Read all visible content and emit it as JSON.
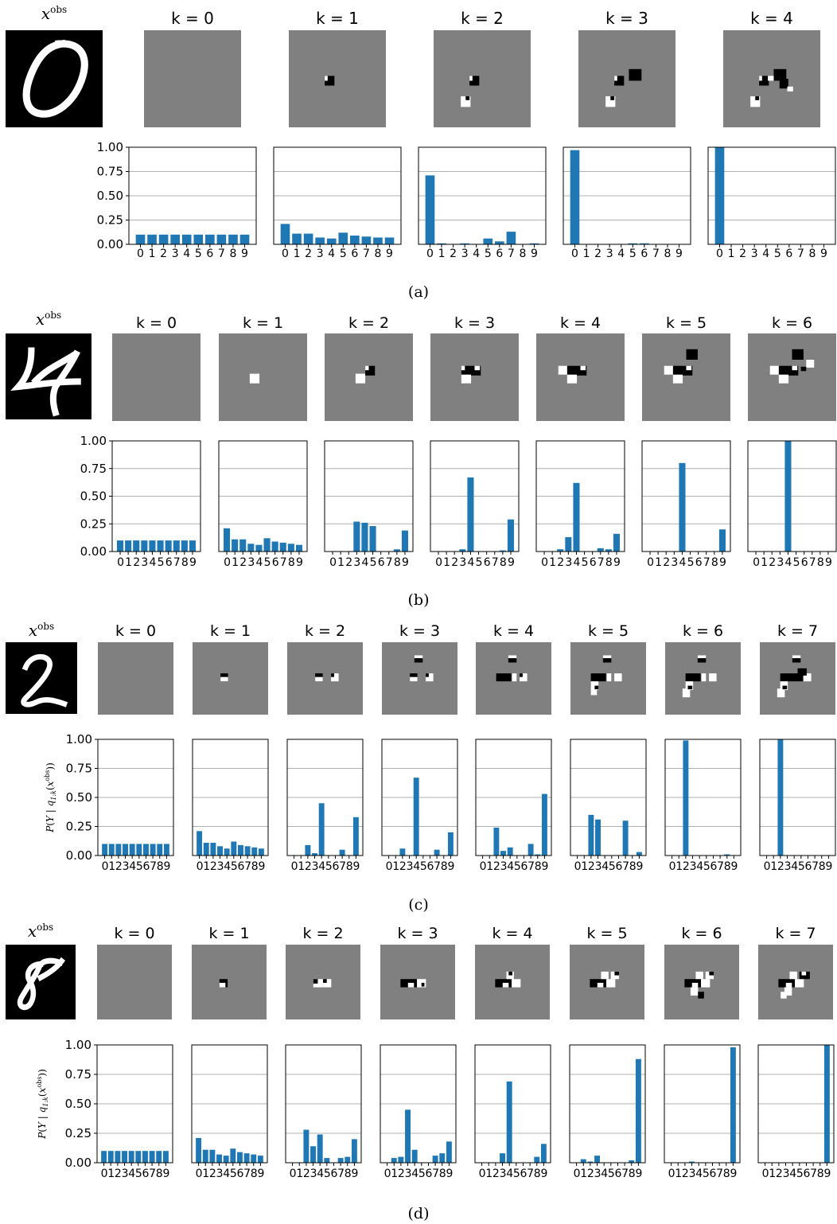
{
  "figure": {
    "obs_label_base": "x",
    "obs_label_sup": "obs",
    "k_prefix": "k = ",
    "ylabel": {
      "p": "P",
      "y": "Y",
      "bar": "|",
      "q": "q",
      "qsub": "1:k",
      "x": "x",
      "xsup": "obs"
    }
  },
  "chart_data": [
    {
      "type": "bar",
      "caption": "(a)",
      "digit": "0",
      "yticks": [
        "0.00",
        "0.25",
        "0.50",
        "0.75",
        "1.00"
      ],
      "ylim": [
        0,
        1
      ],
      "grid": "horizontal",
      "categories": [
        "0",
        "1",
        "2",
        "3",
        "4",
        "5",
        "6",
        "7",
        "8",
        "9"
      ],
      "panels": [
        {
          "k": 0,
          "values": [
            0.1,
            0.1,
            0.1,
            0.1,
            0.1,
            0.1,
            0.1,
            0.1,
            0.1,
            0.1
          ]
        },
        {
          "k": 1,
          "values": [
            0.21,
            0.11,
            0.11,
            0.07,
            0.06,
            0.12,
            0.09,
            0.08,
            0.07,
            0.07
          ]
        },
        {
          "k": 2,
          "values": [
            0.71,
            0.01,
            0.0,
            0.01,
            0.0,
            0.06,
            0.03,
            0.13,
            0.0,
            0.01
          ]
        },
        {
          "k": 3,
          "values": [
            0.97,
            0.0,
            0.0,
            0.0,
            0.0,
            0.01,
            0.01,
            0.0,
            0.0,
            0.0
          ]
        },
        {
          "k": 4,
          "values": [
            1.0,
            0.0,
            0.0,
            0.0,
            0.0,
            0.0,
            0.0,
            0.0,
            0.0,
            0.0
          ]
        }
      ]
    },
    {
      "type": "bar",
      "caption": "(b)",
      "digit": "4",
      "yticks": [
        "0.00",
        "0.25",
        "0.50",
        "0.75",
        "1.00"
      ],
      "ylim": [
        0,
        1
      ],
      "grid": "horizontal",
      "categories": [
        "0",
        "1",
        "2",
        "3",
        "4",
        "5",
        "6",
        "7",
        "8",
        "9"
      ],
      "panels": [
        {
          "k": 0,
          "values": [
            0.1,
            0.1,
            0.1,
            0.1,
            0.1,
            0.1,
            0.1,
            0.1,
            0.1,
            0.1
          ]
        },
        {
          "k": 1,
          "values": [
            0.21,
            0.11,
            0.11,
            0.07,
            0.06,
            0.12,
            0.09,
            0.08,
            0.07,
            0.06
          ]
        },
        {
          "k": 2,
          "values": [
            0.0,
            0.0,
            0.0,
            0.27,
            0.26,
            0.23,
            0.0,
            0.0,
            0.02,
            0.19
          ]
        },
        {
          "k": 3,
          "values": [
            0.0,
            0.0,
            0.0,
            0.02,
            0.67,
            0.0,
            0.0,
            0.0,
            0.01,
            0.29
          ]
        },
        {
          "k": 4,
          "values": [
            0.0,
            0.0,
            0.02,
            0.13,
            0.62,
            0.0,
            0.0,
            0.03,
            0.02,
            0.16
          ]
        },
        {
          "k": 5,
          "values": [
            0.0,
            0.0,
            0.0,
            0.0,
            0.8,
            0.0,
            0.0,
            0.0,
            0.0,
            0.2
          ]
        },
        {
          "k": 6,
          "values": [
            0.0,
            0.0,
            0.0,
            0.0,
            1.0,
            0.0,
            0.0,
            0.0,
            0.0,
            0.0
          ]
        }
      ]
    },
    {
      "type": "bar",
      "caption": "(c)",
      "digit": "2",
      "yticks": [
        "0.00",
        "0.25",
        "0.50",
        "0.75",
        "1.00"
      ],
      "ylim": [
        0,
        1
      ],
      "grid": "horizontal",
      "ylabel_shown": true,
      "categories": [
        "0",
        "1",
        "2",
        "3",
        "4",
        "5",
        "6",
        "7",
        "8",
        "9"
      ],
      "panels": [
        {
          "k": 0,
          "values": [
            0.1,
            0.1,
            0.1,
            0.1,
            0.1,
            0.1,
            0.1,
            0.1,
            0.1,
            0.1
          ]
        },
        {
          "k": 1,
          "values": [
            0.21,
            0.11,
            0.11,
            0.08,
            0.06,
            0.12,
            0.09,
            0.08,
            0.07,
            0.06
          ]
        },
        {
          "k": 2,
          "values": [
            0.0,
            0.0,
            0.09,
            0.02,
            0.45,
            0.0,
            0.0,
            0.05,
            0.0,
            0.33
          ]
        },
        {
          "k": 3,
          "values": [
            0.0,
            0.0,
            0.06,
            0.0,
            0.67,
            0.0,
            0.0,
            0.05,
            0.0,
            0.2
          ]
        },
        {
          "k": 4,
          "values": [
            0.0,
            0.0,
            0.24,
            0.04,
            0.07,
            0.0,
            0.0,
            0.1,
            0.01,
            0.53
          ]
        },
        {
          "k": 5,
          "values": [
            0.0,
            0.0,
            0.35,
            0.31,
            0.0,
            0.0,
            0.0,
            0.3,
            0.0,
            0.03
          ]
        },
        {
          "k": 6,
          "values": [
            0.0,
            0.0,
            0.99,
            0.0,
            0.0,
            0.0,
            0.0,
            0.0,
            0.01,
            0.0
          ]
        },
        {
          "k": 7,
          "values": [
            0.0,
            0.0,
            1.0,
            0.0,
            0.0,
            0.0,
            0.0,
            0.0,
            0.0,
            0.0
          ]
        }
      ]
    },
    {
      "type": "bar",
      "caption": "(d)",
      "digit": "8",
      "yticks": [
        "0.00",
        "0.25",
        "0.50",
        "0.75",
        "1.00"
      ],
      "ylim": [
        0,
        1
      ],
      "grid": "horizontal",
      "ylabel_shown": true,
      "categories": [
        "0",
        "1",
        "2",
        "3",
        "4",
        "5",
        "6",
        "7",
        "8",
        "9"
      ],
      "panels": [
        {
          "k": 0,
          "values": [
            0.1,
            0.1,
            0.1,
            0.1,
            0.1,
            0.1,
            0.1,
            0.1,
            0.1,
            0.1
          ]
        },
        {
          "k": 1,
          "values": [
            0.21,
            0.11,
            0.11,
            0.07,
            0.06,
            0.12,
            0.09,
            0.08,
            0.07,
            0.06
          ]
        },
        {
          "k": 2,
          "values": [
            0.0,
            0.0,
            0.28,
            0.14,
            0.24,
            0.04,
            0.0,
            0.04,
            0.05,
            0.2
          ]
        },
        {
          "k": 3,
          "values": [
            0.0,
            0.04,
            0.05,
            0.45,
            0.11,
            0.0,
            0.0,
            0.06,
            0.08,
            0.18
          ]
        },
        {
          "k": 4,
          "values": [
            0.0,
            0.0,
            0.0,
            0.08,
            0.69,
            0.0,
            0.0,
            0.0,
            0.05,
            0.16
          ]
        },
        {
          "k": 5,
          "values": [
            0.0,
            0.03,
            0.01,
            0.06,
            0.0,
            0.0,
            0.0,
            0.0,
            0.02,
            0.88
          ]
        },
        {
          "k": 6,
          "values": [
            0.0,
            0.0,
            0.0,
            0.01,
            0.0,
            0.0,
            0.0,
            0.0,
            0.0,
            0.98
          ]
        },
        {
          "k": 7,
          "values": [
            0.0,
            0.0,
            0.0,
            0.0,
            0.0,
            0.0,
            0.0,
            0.0,
            0.0,
            1.0
          ]
        }
      ]
    }
  ],
  "colors": {
    "bar": "#1f77b4",
    "mask_gray": "#808080",
    "grid": "#b0b0b0"
  }
}
